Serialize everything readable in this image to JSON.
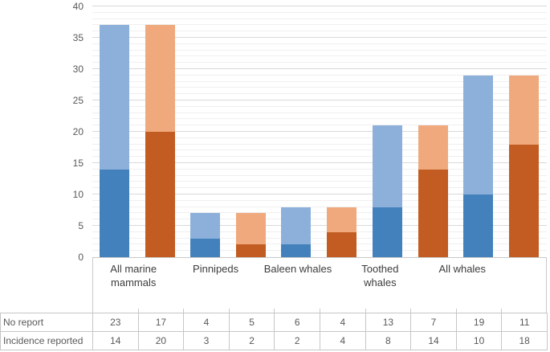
{
  "chart_data": {
    "type": "bar",
    "subtype": "stacked-column, two bars per category",
    "title": "",
    "xlabel": "",
    "ylabel": "",
    "ylim": [
      0,
      40
    ],
    "major_unit": 5,
    "minor_unit": 1,
    "grid": "horizontal major and minor gridlines",
    "legend_position": "none (series labels shown in data table)",
    "yticks": [
      0,
      5,
      10,
      15,
      20,
      25,
      30,
      35,
      40
    ],
    "categories": [
      "All marine mammals",
      "Pinnipeds",
      "Baleen whales",
      "Toothed whales",
      "All whales"
    ],
    "bars_per_category": 2,
    "rows": [
      {
        "label": "No report",
        "stack_position": "top",
        "values": [
          23,
          17,
          4,
          5,
          6,
          4,
          13,
          7,
          19,
          11
        ]
      },
      {
        "label": "Incidence reported",
        "stack_position": "bottom",
        "values": [
          14,
          20,
          3,
          2,
          2,
          4,
          8,
          14,
          10,
          18
        ]
      }
    ],
    "bar_totals": [
      37,
      37,
      7,
      7,
      8,
      8,
      21,
      21,
      29,
      29
    ],
    "bar_colors": [
      {
        "name": "first-bar-blue",
        "bottom_hex": "#4381BC",
        "top_hex": "#8CB0DA"
      },
      {
        "name": "second-bar-orange",
        "bottom_hex": "#C25C22",
        "top_hex": "#EFA97D"
      }
    ]
  }
}
